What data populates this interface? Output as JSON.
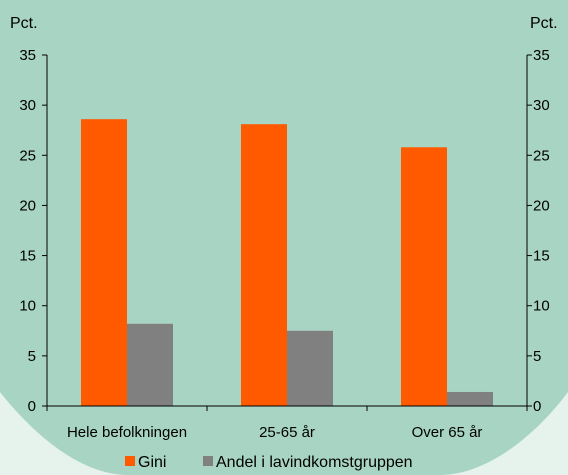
{
  "colors": {
    "background_outer": "#e6f2ec",
    "background_inner": "#a8d5c3",
    "gini": "#ff5a00",
    "andel": "#808080",
    "axis": "#000000"
  },
  "chart_data": {
    "type": "bar",
    "title": "",
    "y_unit_left": "Pct.",
    "y_unit_right": "Pct.",
    "categories": [
      "Hele befolkningen",
      "25-65 år",
      "Over 65 år"
    ],
    "series": [
      {
        "name": "Gini",
        "values": [
          28.6,
          28.1,
          25.8
        ]
      },
      {
        "name": "Andel i lavindkomstgruppen",
        "values": [
          8.2,
          7.5,
          1.4
        ]
      }
    ],
    "ylim": [
      0,
      35
    ],
    "yticks": [
      0,
      5,
      10,
      15,
      20,
      25,
      30,
      35
    ],
    "grid": false,
    "legend_position": "bottom"
  }
}
